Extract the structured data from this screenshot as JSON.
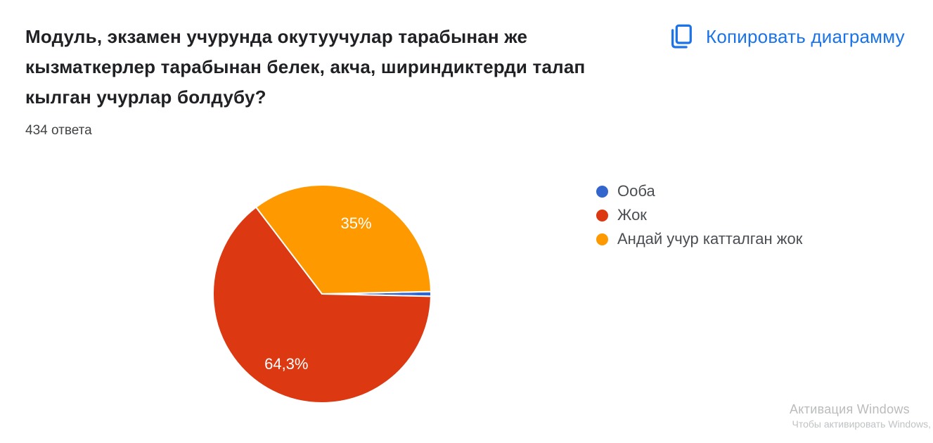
{
  "header": {
    "title_lines": [
      "Модуль, экзамен учурунда окутуучулар тарабынан же",
      "кызматкерлер тарабынан белек, акча, шириндиктерди талап",
      "кылган учурлар болдубу?"
    ],
    "response_count": "434 ответа"
  },
  "toolbar": {
    "copy_chart_label": "Копировать диаграмму",
    "accent_color": "#1a73e8"
  },
  "chart_data": {
    "type": "pie",
    "title": "Модуль, экзамен учурунда окутуучулар тарабынан же кызматкерлер тарабынан белек, акча, шириндиктерди талап кылган учурлар болдубу?",
    "subtitle": "434 ответа",
    "total_responses": 434,
    "unit": "percent",
    "direction": "clockwise",
    "start_angle_deg_from_3oclock": -1.26,
    "legend_position": "right",
    "slice_label_color": "#ffffff",
    "slices": [
      {
        "label": "Ооба",
        "value_pct": 0.7,
        "display_label": "",
        "color": "#3366CC"
      },
      {
        "label": "Жок",
        "value_pct": 64.3,
        "display_label": "64,3%",
        "color": "#DC3912"
      },
      {
        "label": "Андай учур катталган жок",
        "value_pct": 35.0,
        "display_label": "35%",
        "color": "#FF9900"
      }
    ]
  },
  "watermark": {
    "line1": "Активация Windows",
    "line2": "Чтобы активировать Windows,"
  }
}
